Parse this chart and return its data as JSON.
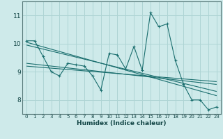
{
  "xlabel": "Humidex (Indice chaleur)",
  "bg_color": "#ceeaea",
  "grid_color": "#aed4d4",
  "line_color": "#1a6e6e",
  "spine_color": "#557777",
  "xlim": [
    -0.5,
    23.5
  ],
  "ylim": [
    7.5,
    11.5
  ],
  "yticks": [
    8,
    9,
    10,
    11
  ],
  "xticks": [
    0,
    1,
    2,
    3,
    4,
    5,
    6,
    7,
    8,
    9,
    10,
    11,
    12,
    13,
    14,
    15,
    16,
    17,
    18,
    19,
    20,
    21,
    22,
    23
  ],
  "series": [
    [
      0,
      10.1
    ],
    [
      1,
      10.1
    ],
    [
      2,
      9.55
    ],
    [
      3,
      9.0
    ],
    [
      4,
      8.85
    ],
    [
      5,
      9.3
    ],
    [
      6,
      9.25
    ],
    [
      7,
      9.2
    ],
    [
      8,
      8.85
    ],
    [
      9,
      8.35
    ],
    [
      10,
      9.65
    ],
    [
      11,
      9.6
    ],
    [
      12,
      9.1
    ],
    [
      13,
      9.9
    ],
    [
      14,
      9.05
    ],
    [
      15,
      11.1
    ],
    [
      16,
      10.6
    ],
    [
      17,
      10.7
    ],
    [
      18,
      9.4
    ],
    [
      19,
      8.55
    ],
    [
      20,
      8.0
    ],
    [
      21,
      8.0
    ],
    [
      22,
      7.65
    ],
    [
      23,
      7.75
    ]
  ],
  "trend_lines": [
    [
      0,
      10.05,
      23,
      8.15
    ],
    [
      0,
      9.95,
      23,
      8.3
    ],
    [
      0,
      9.3,
      23,
      8.55
    ],
    [
      0,
      9.2,
      23,
      8.65
    ]
  ]
}
